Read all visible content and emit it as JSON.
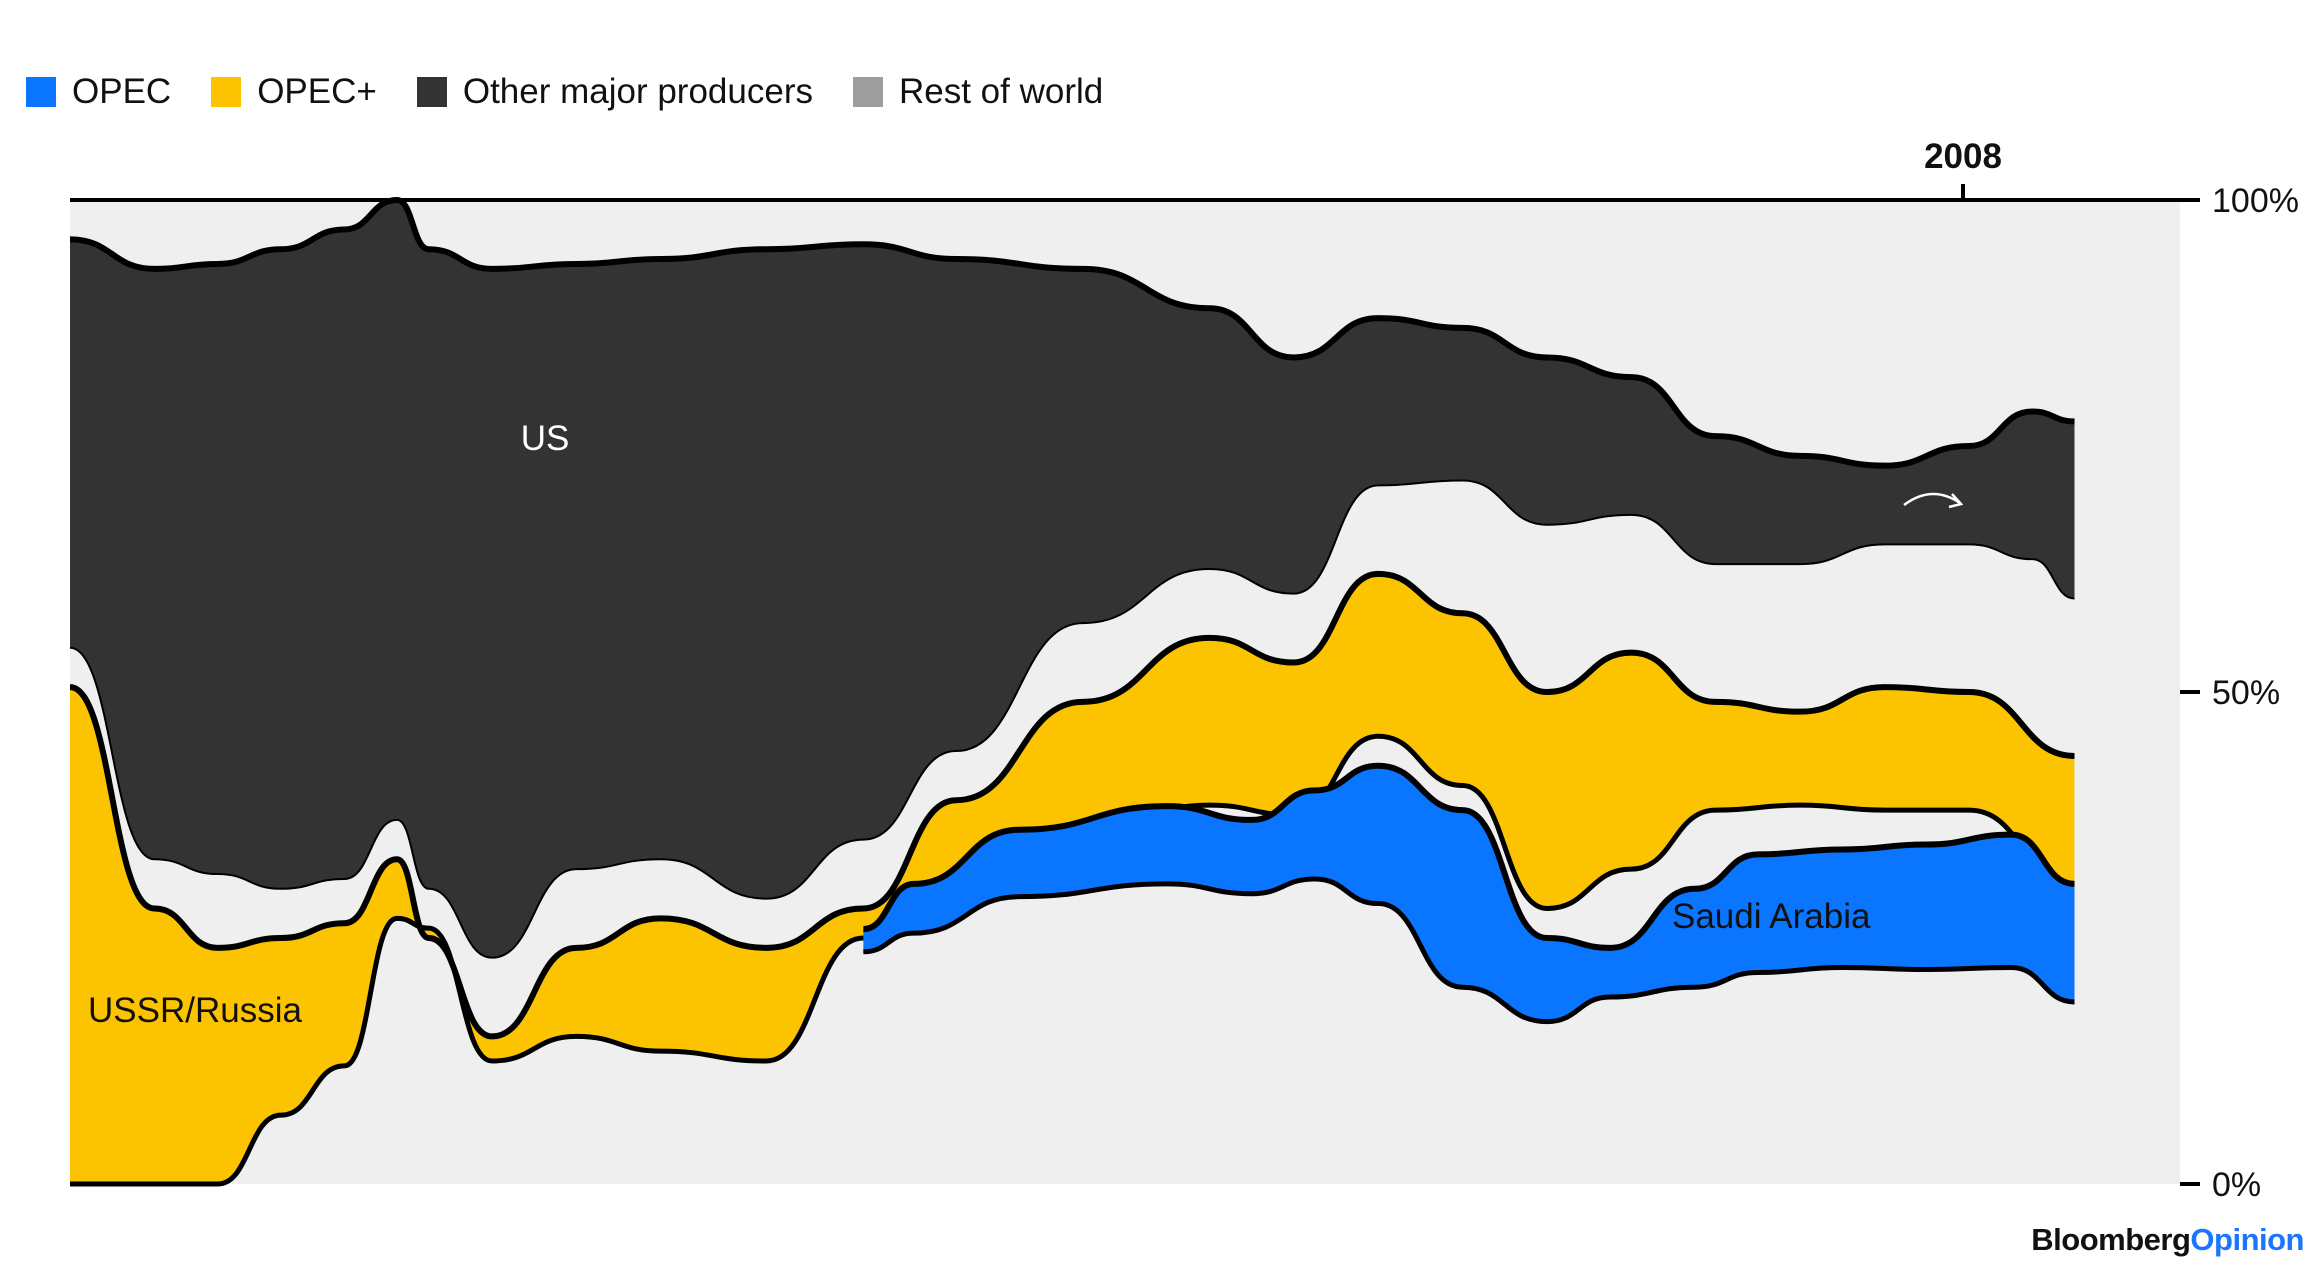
{
  "legend": {
    "items": [
      {
        "label": "OPEC",
        "color": "#0a75ff"
      },
      {
        "label": "OPEC+",
        "color": "#fcc300"
      },
      {
        "label": "Other major producers",
        "color": "#333333"
      },
      {
        "label": "Rest of world",
        "color": "#9e9e9e"
      }
    ]
  },
  "brand": {
    "part1": "Bloomberg",
    "part2": "Opinion"
  },
  "colors": {
    "opec": "#0a75ff",
    "opec_plus": "#fcc300",
    "other_major": "#333333",
    "rest_of_world": "#efefef",
    "outline": "#000000"
  },
  "chart_data": {
    "type": "area",
    "title": "",
    "ylabel": "",
    "ylim": [
      0,
      100
    ],
    "yticks": [
      {
        "value": 100,
        "label": "100%"
      },
      {
        "value": 50,
        "label": "50%"
      },
      {
        "value": 0,
        "label": "0%"
      }
    ],
    "highlight_year": {
      "label": "2008"
    },
    "series": [
      {
        "name": "OPEC",
        "color": "#0a75ff",
        "description": "OPEC share (ribbon shown from mid-series)",
        "values": [
          [
            0.376,
            23.6,
            25.9
          ],
          [
            0.4,
            25.5,
            30.5
          ],
          [
            0.45,
            29.2,
            36.0
          ],
          [
            0.52,
            30.5,
            38.4
          ],
          [
            0.56,
            29.5,
            37.0
          ],
          [
            0.59,
            31.0,
            40.0
          ],
          [
            0.62,
            28.5,
            42.5
          ],
          [
            0.66,
            20.0,
            38.0
          ],
          [
            0.7,
            16.5,
            25.0
          ],
          [
            0.73,
            19.0,
            24.0
          ],
          [
            0.77,
            20.0,
            30.0
          ],
          [
            0.8,
            21.5,
            33.5
          ],
          [
            0.84,
            22.0,
            34.0
          ],
          [
            0.88,
            21.8,
            34.5
          ],
          [
            0.92,
            22.0,
            35.5
          ],
          [
            0.95,
            18.5,
            30.5
          ]
        ]
      },
      {
        "name": "OPEC+",
        "color": "#fcc300",
        "description": "OPEC+ share band",
        "values": [
          [
            0.0,
            0.0,
            50.5
          ],
          [
            0.04,
            0.0,
            28.0
          ],
          [
            0.07,
            0.0,
            24.0
          ],
          [
            0.1,
            7.0,
            25.0
          ],
          [
            0.13,
            12.0,
            26.5
          ],
          [
            0.155,
            27.0,
            33.0
          ],
          [
            0.17,
            26.0,
            25.0
          ],
          [
            0.2,
            12.5,
            15.0
          ],
          [
            0.24,
            15.0,
            24.0
          ],
          [
            0.28,
            13.5,
            27.0
          ],
          [
            0.33,
            12.5,
            24.0
          ],
          [
            0.376,
            25.0,
            28.0
          ],
          [
            0.42,
            31.0,
            39.0
          ],
          [
            0.48,
            36.0,
            49.0
          ],
          [
            0.54,
            38.5,
            55.5
          ],
          [
            0.58,
            37.5,
            53.0
          ],
          [
            0.62,
            45.5,
            62.0
          ],
          [
            0.66,
            40.5,
            58.0
          ],
          [
            0.7,
            28.0,
            50.0
          ],
          [
            0.74,
            32.0,
            54.0
          ],
          [
            0.78,
            38.0,
            49.0
          ],
          [
            0.82,
            38.5,
            48.0
          ],
          [
            0.86,
            38.0,
            50.5
          ],
          [
            0.9,
            38.0,
            50.0
          ],
          [
            0.95,
            30.5,
            43.5
          ]
        ]
      },
      {
        "name": "Other major producers",
        "color": "#333333",
        "description": "US and USSR/Russia etc.",
        "values": [
          [
            0.0,
            54.5,
            96.0
          ],
          [
            0.04,
            33.0,
            93.0
          ],
          [
            0.07,
            31.5,
            93.5
          ],
          [
            0.1,
            30.0,
            95.0
          ],
          [
            0.13,
            31.0,
            97.0
          ],
          [
            0.155,
            37.0,
            100.0
          ],
          [
            0.17,
            30.0,
            95.0
          ],
          [
            0.2,
            23.0,
            93.0
          ],
          [
            0.24,
            32.0,
            93.5
          ],
          [
            0.28,
            33.0,
            94.0
          ],
          [
            0.33,
            29.0,
            95.0
          ],
          [
            0.376,
            35.0,
            95.5
          ],
          [
            0.42,
            44.0,
            94.0
          ],
          [
            0.48,
            57.0,
            93.0
          ],
          [
            0.54,
            62.5,
            89.0
          ],
          [
            0.58,
            60.0,
            84.0
          ],
          [
            0.62,
            71.0,
            88.0
          ],
          [
            0.66,
            71.5,
            87.0
          ],
          [
            0.7,
            67.0,
            84.0
          ],
          [
            0.74,
            68.0,
            82.0
          ],
          [
            0.78,
            63.0,
            76.0
          ],
          [
            0.82,
            63.0,
            74.0
          ],
          [
            0.86,
            65.0,
            73.0
          ],
          [
            0.9,
            65.0,
            75.0
          ],
          [
            0.93,
            63.5,
            78.5
          ],
          [
            0.95,
            59.5,
            77.5
          ]
        ]
      },
      {
        "name": "Rest of world",
        "color": "#efefef",
        "description": "remainder to 100%",
        "values": []
      }
    ],
    "annotations": [
      {
        "label": "US",
        "x": 0.22,
        "y": 76
      },
      {
        "label": "USSR/Russia",
        "x": 0.06,
        "y": 17.5
      },
      {
        "label": "Saudi Arabia",
        "x": 0.8,
        "y": 27
      }
    ]
  }
}
